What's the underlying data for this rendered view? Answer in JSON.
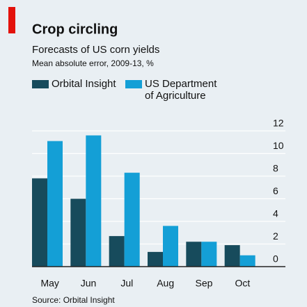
{
  "chart_data": {
    "type": "bar",
    "title": "Crop circling",
    "subtitle": "Forecasts of US corn yields",
    "y_label": "Mean absolute error, 2009-13, %",
    "source": "Source: Orbital Insight",
    "categories": [
      "May",
      "Jun",
      "Jul",
      "Aug",
      "Sep",
      "Oct"
    ],
    "series": [
      {
        "name": "Orbital Insight",
        "color": "#174b5c",
        "values": [
          7.8,
          6.0,
          2.7,
          1.3,
          2.2,
          1.9
        ]
      },
      {
        "name": "US Department of Agriculture",
        "color": "#149fd6",
        "values": [
          11.1,
          11.6,
          8.3,
          3.6,
          2.2,
          1.0
        ]
      }
    ],
    "ylim": [
      0,
      12
    ],
    "yticks": [
      0,
      2,
      4,
      6,
      8,
      10,
      12
    ],
    "grid": true
  }
}
